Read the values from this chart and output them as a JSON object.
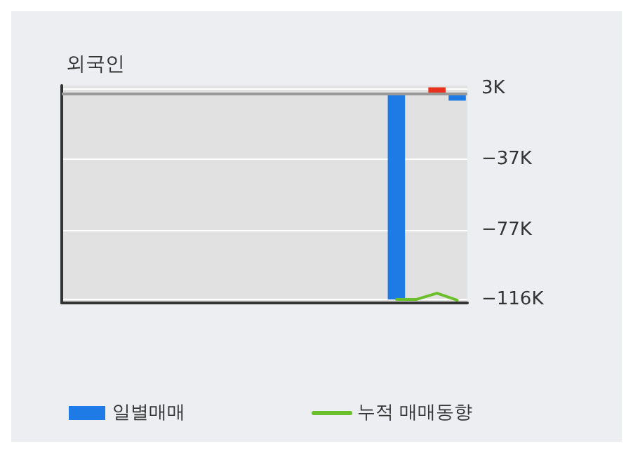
{
  "chart_data": {
    "type": "bar",
    "title": "외국인",
    "categories": [
      null,
      null,
      null,
      null,
      null,
      null,
      null,
      null,
      null,
      null,
      null,
      null,
      null,
      null,
      null,
      null,
      null,
      null,
      null,
      null
    ],
    "series": [
      {
        "name": "일별매매",
        "color": "#1e7be6",
        "colors": [
          null,
          null,
          null,
          null,
          null,
          null,
          null,
          null,
          null,
          null,
          null,
          null,
          null,
          null,
          null,
          null,
          "#1e7be6",
          "#1e7be6",
          "#e8321e",
          "#1e7be6"
        ],
        "values": [
          null,
          null,
          null,
          null,
          null,
          null,
          null,
          null,
          null,
          null,
          null,
          null,
          null,
          null,
          null,
          null,
          -116,
          0,
          3.5,
          -4
        ]
      },
      {
        "name": "누적 매매동향",
        "type": "line",
        "color": "#6abf2a",
        "values": [
          null,
          null,
          null,
          null,
          null,
          null,
          null,
          null,
          null,
          null,
          null,
          null,
          null,
          null,
          null,
          null,
          -116,
          -116,
          -112.5,
          -116.5
        ]
      }
    ],
    "ylim": [
      -118,
      4.5
    ],
    "yticks": [
      {
        "value": 3,
        "label": "3K"
      },
      {
        "value": -37,
        "label": "−37K"
      },
      {
        "value": -77,
        "label": "−77K"
      },
      {
        "value": -116,
        "label": "−116K"
      }
    ],
    "ref_lines": [
      {
        "axis": "y",
        "value": 0,
        "color": "#999999"
      }
    ],
    "grid": "y",
    "legend": "bottom",
    "marker": "none",
    "line_style": "solid"
  }
}
